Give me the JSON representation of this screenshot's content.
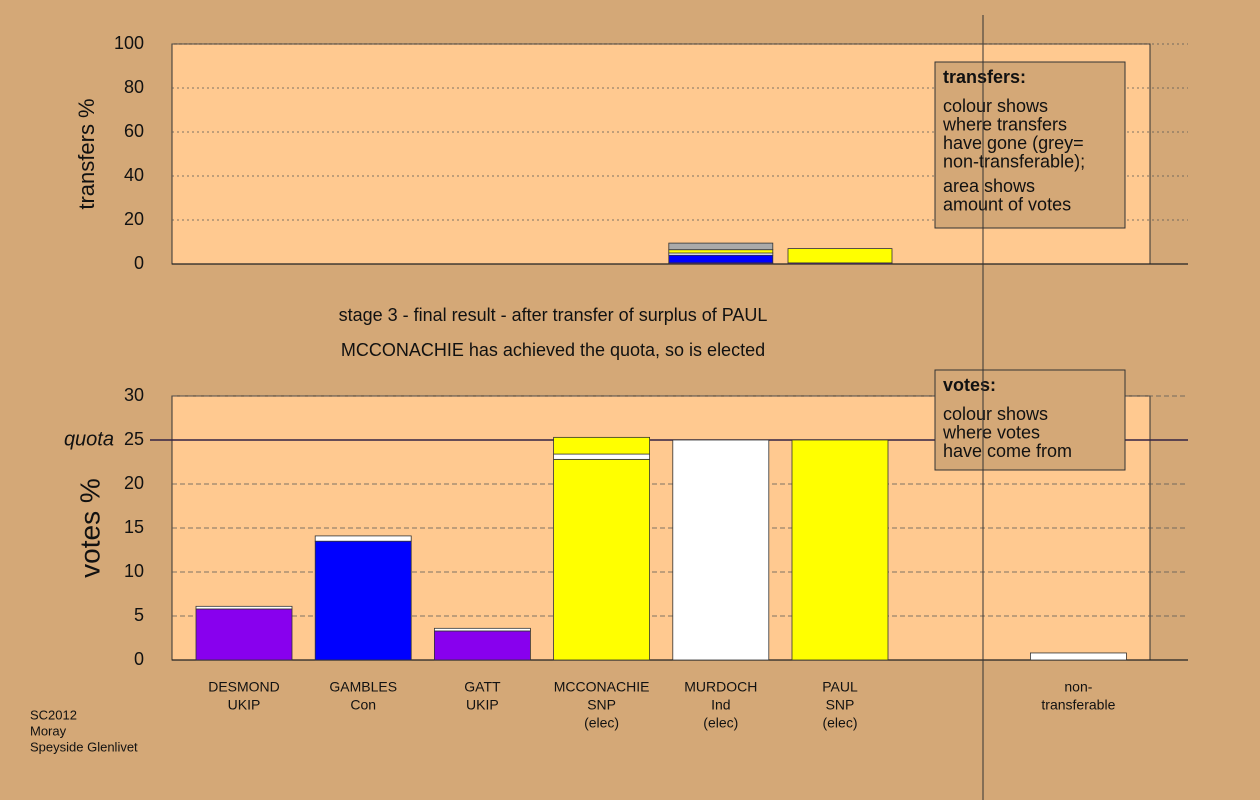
{
  "chart_data": [
    {
      "type": "stacked-bar",
      "y_label": "transfers %",
      "ylim": [
        0,
        100
      ],
      "yticks": [
        0,
        20,
        40,
        60,
        80,
        100
      ],
      "grid": true,
      "series": [
        {
          "color": "#8800ee",
          "values": [
            0,
            0,
            0,
            0,
            0.5,
            0.5,
            null,
            0
          ]
        },
        {
          "color": "#0000ff",
          "values": [
            0,
            0,
            0,
            0,
            3.5,
            0,
            null,
            0
          ]
        },
        {
          "color": "#ffffff",
          "values": [
            0,
            0,
            0,
            0,
            1,
            0,
            null,
            0
          ]
        },
        {
          "color": "#ffff00",
          "values": [
            0,
            0,
            0,
            0,
            1.5,
            6.5,
            null,
            0
          ]
        },
        {
          "color": "#aaaaaa",
          "values": [
            0,
            0,
            0,
            0,
            3,
            0,
            null,
            0
          ]
        }
      ],
      "annotation": {
        "title": "transfers:",
        "lines": [
          "colour shows",
          "where transfers",
          "have gone (grey=",
          "non-transferable);",
          "area shows",
          "amount of votes"
        ]
      }
    },
    {
      "type": "stacked-bar",
      "y_label": "votes %",
      "ylim": [
        0,
        30
      ],
      "yticks": [
        0,
        5,
        10,
        15,
        20,
        25,
        30
      ],
      "grid": true,
      "quota": {
        "label": "quota",
        "value": 25
      },
      "categories": [
        [
          "DESMOND",
          "UKIP"
        ],
        [
          "GAMBLES",
          "Con"
        ],
        [
          "GATT",
          "UKIP"
        ],
        [
          "MCCONACHIE",
          "SNP",
          "(elec)"
        ],
        [
          "MURDOCH",
          "Ind",
          "(elec)"
        ],
        [
          "PAUL",
          "SNP",
          "(elec)"
        ],
        null,
        [
          "non-",
          "transferable"
        ]
      ],
      "series": [
        {
          "color": "#8800ee",
          "values": [
            5.8,
            0,
            3.3,
            0,
            0,
            0,
            null,
            0
          ]
        },
        {
          "color": "#0000ff",
          "values": [
            0,
            13.5,
            0,
            0,
            0,
            0,
            null,
            0
          ]
        },
        {
          "color": "#ffff00",
          "values": [
            0,
            0,
            0,
            22.8,
            0,
            25,
            null,
            0
          ]
        },
        {
          "color": "#ffffff",
          "values": [
            0.3,
            0.6,
            0.3,
            0.6,
            25,
            0,
            null,
            0.8
          ]
        },
        {
          "color": "#ffff00",
          "values": [
            0,
            0,
            0,
            1.9,
            0,
            0,
            null,
            0
          ]
        }
      ],
      "annotation": {
        "title": "votes:",
        "lines": [
          "colour shows",
          "where votes",
          "have come from"
        ]
      }
    }
  ],
  "stage_text": [
    "stage 3 - final result - after transfer of surplus of PAUL",
    "MCCONACHIE has achieved the quota, so is elected"
  ],
  "footer": [
    "SC2012",
    "Moray",
    "Speyside Glenlivet"
  ]
}
